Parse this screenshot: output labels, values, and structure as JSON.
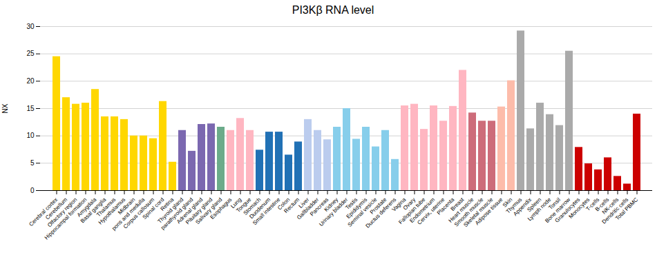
{
  "chart_data": {
    "type": "bar",
    "title": "PI3Kβ RNA level",
    "ylabel": "NX",
    "ylim": [
      0,
      30
    ],
    "yticks": [
      0,
      5,
      10,
      15,
      20,
      25,
      30
    ],
    "grid": true,
    "categories": [
      "Cerebral cortex",
      "Cerebellum",
      "Olfactory region",
      "Hippocampal formation",
      "Amygdala",
      "Basal ganglia",
      "Thalamus",
      "Hypothalamus",
      "Midbrain",
      "pons and medulla",
      "Corpus callosum",
      "Spinal cord",
      "Retina",
      "Thyroid gland",
      "parathyroid gland",
      "Adrenal gland",
      "Pituitary gland",
      "Salivary gland",
      "Esophagus",
      "Lung",
      "Tongue",
      "Stomach",
      "Duodenum",
      "Small intestine",
      "Colon",
      "Rectum",
      "Liver",
      "Gallbladder",
      "Pancreas",
      "Kidney",
      "Urinary bladder",
      "Testis",
      "Epididymis",
      "Seminal vesicle",
      "Prostate",
      "Ductus deferens",
      "Vagina",
      "Ovary",
      "Fallopian tube",
      "Endometrium",
      "Cervix, uterine",
      "Placenta",
      "Breast",
      "Heart muscle",
      "Smooth muscle",
      "Skeletal muscle",
      "Adipose tissue",
      "Skin",
      "Thymus",
      "Appendix",
      "Spleen",
      "Lymph node",
      "Tonsil",
      "Bone marrow",
      "Granulocytes",
      "Monocytes",
      "T-cells",
      "B-cells",
      "NK-cells",
      "Dendritic cells",
      "Total PBMC"
    ],
    "values": [
      24.5,
      17.0,
      15.8,
      16.0,
      18.5,
      13.5,
      13.5,
      13.0,
      10.0,
      10.0,
      9.5,
      16.3,
      5.2,
      11.0,
      7.2,
      12.1,
      12.2,
      11.6,
      11.0,
      13.2,
      11.0,
      7.4,
      10.7,
      10.7,
      6.5,
      8.9,
      13.0,
      11.0,
      9.3,
      11.6,
      15.0,
      9.4,
      11.6,
      8.0,
      11.0,
      5.7,
      15.5,
      15.8,
      11.2,
      15.5,
      12.7,
      15.4,
      22.0,
      14.2,
      12.7,
      12.7,
      15.3,
      20.1,
      29.2,
      11.3,
      16.0,
      13.9,
      11.9,
      25.5,
      7.9,
      4.9,
      3.8,
      6.0,
      2.6,
      1.2,
      14.0
    ],
    "colors": [
      "#FFD700",
      "#FFD700",
      "#FFD700",
      "#FFD700",
      "#FFD700",
      "#FFD700",
      "#FFD700",
      "#FFD700",
      "#FFD700",
      "#FFD700",
      "#FFD700",
      "#FFD700",
      "#FFD700",
      "#7B68B0",
      "#7B68B0",
      "#7B68B0",
      "#7B68B0",
      "#6BAB8A",
      "#FFB6C1",
      "#FFB6C1",
      "#FFB6C1",
      "#2171B5",
      "#2171B5",
      "#2171B5",
      "#2171B5",
      "#2171B5",
      "#BBCCEE",
      "#BBCCEE",
      "#BBCCEE",
      "#87CEEB",
      "#87CEEB",
      "#87CEEB",
      "#87CEEB",
      "#87CEEB",
      "#87CEEB",
      "#87CEEB",
      "#FFB6C1",
      "#FFB6C1",
      "#FFB6C1",
      "#FFB6C1",
      "#FFB6C1",
      "#FFB6C1",
      "#FFB6C1",
      "#CD6C7A",
      "#CD6C7A",
      "#CD6C7A",
      "#FDBCAA",
      "#FDBCAA",
      "#AAAAAA",
      "#AAAAAA",
      "#AAAAAA",
      "#AAAAAA",
      "#AAAAAA",
      "#AAAAAA",
      "#CC0000",
      "#CC0000",
      "#CC0000",
      "#CC0000",
      "#CC0000",
      "#CC0000",
      "#CC0000"
    ]
  }
}
